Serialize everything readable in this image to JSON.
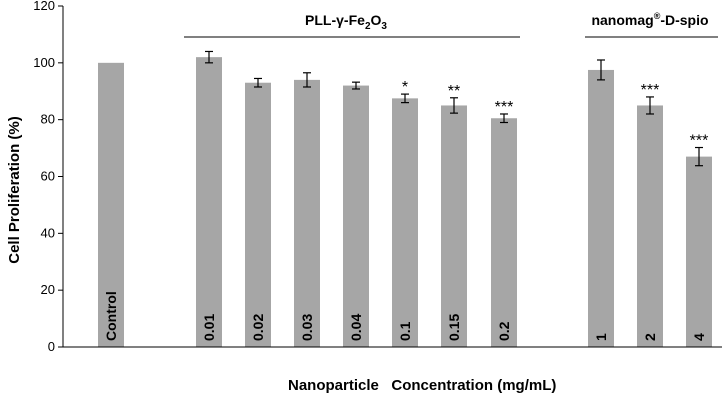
{
  "chart_data": {
    "type": "bar",
    "title": "",
    "xlabel": "Nanoparticle   Concentration (mg/mL)",
    "ylabel": "Cell Proliferation (%)",
    "ylim": [
      0,
      120
    ],
    "yticks": [
      0,
      20,
      40,
      60,
      80,
      100,
      120
    ],
    "grid": false,
    "categories": [
      "Control",
      "0.01",
      "0.02",
      "0.03",
      "0.04",
      "0.1",
      "0.15",
      "0.2",
      "1",
      "2",
      "4"
    ],
    "values": [
      100,
      102,
      93,
      94,
      92,
      87.5,
      85,
      80.5,
      97.5,
      85,
      67
    ],
    "errors": [
      0,
      2,
      1.5,
      2.5,
      1.2,
      1.5,
      2.7,
      1.5,
      3.5,
      3,
      3.2
    ],
    "significance": [
      "",
      "",
      "",
      "",
      "",
      "*",
      "**",
      "***",
      "",
      "***",
      "***"
    ],
    "groups": [
      {
        "label_main": "PLL-γ-Fe",
        "sub1": "2",
        "mid": "O",
        "sub2": "3",
        "start": 1,
        "end": 7
      },
      {
        "label_main": "nanomag",
        "sup": "®",
        "label_rest": "-D-spio",
        "start": 8,
        "end": 10
      }
    ]
  }
}
